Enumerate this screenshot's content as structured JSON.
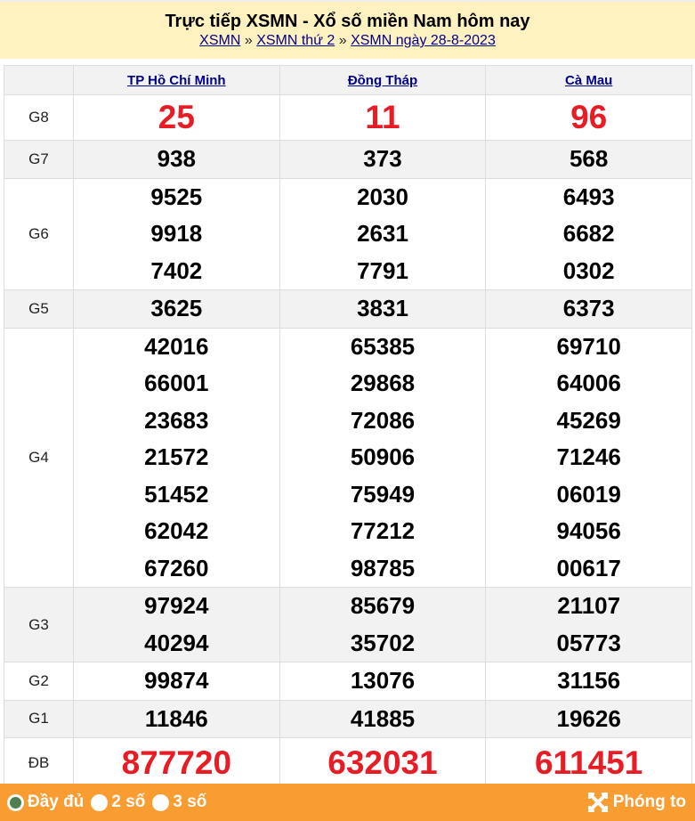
{
  "header": {
    "title": "Trực tiếp XSMN - Xổ số miền Nam hôm nay",
    "breadcrumb": [
      "XSMN",
      "XSMN thứ 2",
      "XSMN ngày 28-8-2023"
    ],
    "separator": "»"
  },
  "provinces": [
    "TP Hồ Chí Minh",
    "Đồng Tháp",
    "Cà Mau"
  ],
  "prizes": [
    {
      "label": "G8",
      "values": [
        [
          "25"
        ],
        [
          "11"
        ],
        [
          "96"
        ]
      ]
    },
    {
      "label": "G7",
      "values": [
        [
          "938"
        ],
        [
          "373"
        ],
        [
          "568"
        ]
      ]
    },
    {
      "label": "G6",
      "values": [
        [
          "9525",
          "9918",
          "7402"
        ],
        [
          "2030",
          "2631",
          "7791"
        ],
        [
          "6493",
          "6682",
          "0302"
        ]
      ]
    },
    {
      "label": "G5",
      "values": [
        [
          "3625"
        ],
        [
          "3831"
        ],
        [
          "6373"
        ]
      ]
    },
    {
      "label": "G4",
      "values": [
        [
          "42016",
          "66001",
          "23683",
          "21572",
          "51452",
          "62042",
          "67260"
        ],
        [
          "65385",
          "29868",
          "72086",
          "50906",
          "75949",
          "77212",
          "98785"
        ],
        [
          "69710",
          "64006",
          "45269",
          "71246",
          "06019",
          "94056",
          "00617"
        ]
      ]
    },
    {
      "label": "G3",
      "values": [
        [
          "97924",
          "40294"
        ],
        [
          "85679",
          "35702"
        ],
        [
          "21107",
          "05773"
        ]
      ]
    },
    {
      "label": "G2",
      "values": [
        [
          "99874"
        ],
        [
          "13076"
        ],
        [
          "31156"
        ]
      ]
    },
    {
      "label": "G1",
      "values": [
        [
          "11846"
        ],
        [
          "41885"
        ],
        [
          "19626"
        ]
      ]
    },
    {
      "label": "ĐB",
      "values": [
        [
          "877720"
        ],
        [
          "632031"
        ],
        [
          "611451"
        ]
      ]
    }
  ],
  "footer": {
    "options": [
      {
        "label": "Đầy đủ",
        "selected": true
      },
      {
        "label": "2 số",
        "selected": false
      },
      {
        "label": "3 số",
        "selected": false
      }
    ],
    "zoom_label": "Phóng to",
    "zoom_icon": "expand-icon"
  },
  "colors": {
    "header_bg": "#fff2c0",
    "footer_bg": "#f99d33",
    "special_prize": "#e81c24",
    "link": "#00008b"
  }
}
